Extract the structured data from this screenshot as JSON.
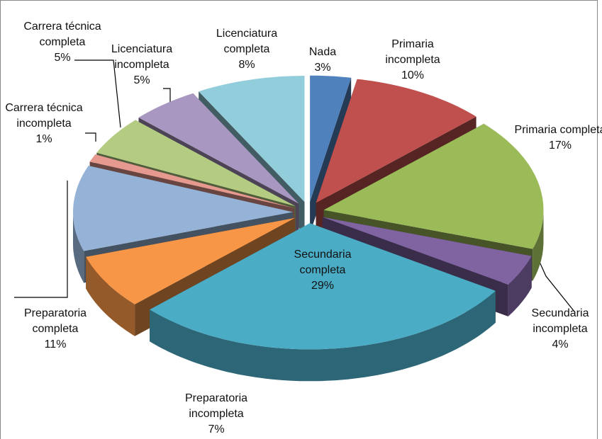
{
  "chart_data": {
    "type": "pie",
    "categories": [
      "Nada",
      "Primaria incompleta",
      "Primaria completa",
      "Secundaria incompleta",
      "Secundaria completa",
      "Preparatoria incompleta",
      "Preparatoria completa",
      "Carrera técnica incompleta",
      "Carrera técnica completa",
      "Licenciatura incompleta",
      "Licenciatura completa"
    ],
    "values": [
      3,
      10,
      17,
      4,
      29,
      7,
      11,
      1,
      5,
      5,
      8
    ],
    "value_labels": [
      "3%",
      "10%",
      "17%",
      "4%",
      "29%",
      "7%",
      "11%",
      "1%",
      "5%",
      "5%",
      "8%"
    ],
    "colors": [
      "#4f81bd",
      "#c0504d",
      "#9bbb59",
      "#8064a2",
      "#4bacc6",
      "#f79646",
      "#95b3d7",
      "#e6998f",
      "#b3cc82",
      "#a897c0",
      "#92cddc"
    ]
  }
}
